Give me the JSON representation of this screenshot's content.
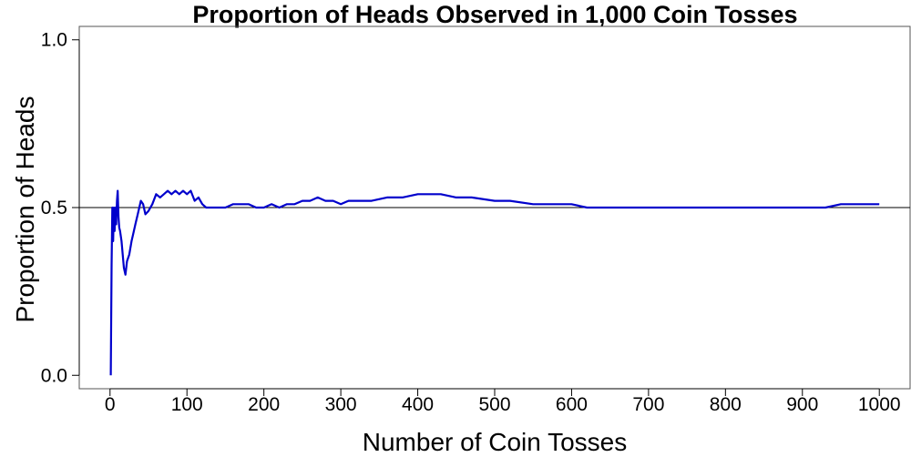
{
  "chart_data": {
    "type": "line",
    "title": "Proportion of Heads Observed in 1,000 Coin Tosses",
    "xlabel": "Number of Coin Tosses",
    "ylabel": "Proportion of Heads",
    "xlim": [
      -40,
      1040
    ],
    "ylim": [
      -0.04,
      1.04
    ],
    "xticks": [
      0,
      100,
      200,
      300,
      400,
      500,
      600,
      700,
      800,
      900,
      1000
    ],
    "yticks": [
      0.0,
      0.5,
      1.0
    ],
    "xtick_labels": [
      "0",
      "100",
      "200",
      "300",
      "400",
      "500",
      "600",
      "700",
      "800",
      "900",
      "1000"
    ],
    "ytick_labels": [
      "0.0",
      "0.5",
      "1.0"
    ],
    "reference_line": 0.5,
    "grid": false,
    "series": [
      {
        "color": "#0000cc",
        "x": [
          1,
          2,
          3,
          4,
          5,
          6,
          7,
          8,
          9,
          10,
          11,
          12,
          13,
          15,
          18,
          20,
          22,
          25,
          28,
          30,
          33,
          36,
          40,
          43,
          46,
          50,
          55,
          60,
          65,
          70,
          75,
          80,
          85,
          90,
          95,
          100,
          105,
          110,
          115,
          120,
          125,
          130,
          140,
          150,
          160,
          170,
          180,
          190,
          200,
          210,
          220,
          230,
          240,
          250,
          260,
          270,
          280,
          290,
          300,
          310,
          320,
          340,
          360,
          380,
          400,
          420,
          430,
          450,
          470,
          500,
          520,
          550,
          580,
          600,
          620,
          650,
          680,
          700,
          720,
          750,
          780,
          800,
          830,
          860,
          880,
          900,
          930,
          950,
          980,
          1000
        ],
        "y": [
          0.0,
          0.33,
          0.5,
          0.4,
          0.5,
          0.43,
          0.5,
          0.45,
          0.52,
          0.55,
          0.47,
          0.44,
          0.43,
          0.4,
          0.32,
          0.3,
          0.34,
          0.36,
          0.4,
          0.42,
          0.45,
          0.48,
          0.52,
          0.51,
          0.48,
          0.49,
          0.51,
          0.54,
          0.53,
          0.54,
          0.55,
          0.54,
          0.55,
          0.54,
          0.55,
          0.54,
          0.55,
          0.52,
          0.53,
          0.51,
          0.5,
          0.5,
          0.5,
          0.5,
          0.51,
          0.51,
          0.51,
          0.5,
          0.5,
          0.51,
          0.5,
          0.51,
          0.51,
          0.52,
          0.52,
          0.53,
          0.52,
          0.52,
          0.51,
          0.52,
          0.52,
          0.52,
          0.53,
          0.53,
          0.54,
          0.54,
          0.54,
          0.53,
          0.53,
          0.52,
          0.52,
          0.51,
          0.51,
          0.51,
          0.5,
          0.5,
          0.5,
          0.5,
          0.5,
          0.5,
          0.5,
          0.5,
          0.5,
          0.5,
          0.5,
          0.5,
          0.5,
          0.51,
          0.51,
          0.51
        ]
      }
    ]
  }
}
